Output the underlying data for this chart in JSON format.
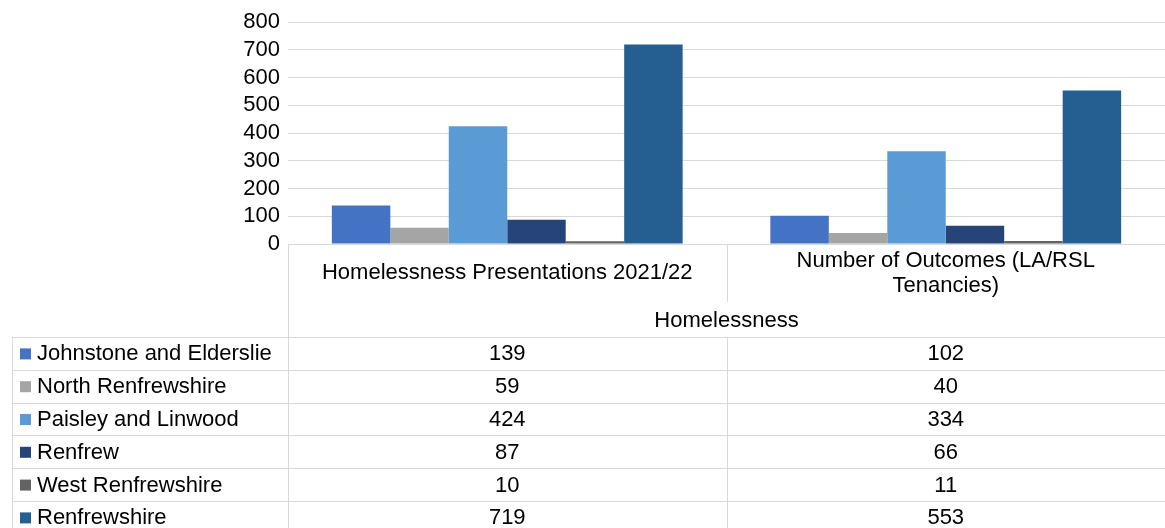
{
  "chart_data": {
    "type": "bar",
    "categories": [
      "Homelessness Presentations 2021/22",
      "Number of Outcomes (LA/RSL Tenancies)"
    ],
    "xlabel": "Homelessness",
    "series": [
      {
        "name": "Johnstone and Elderslie",
        "color": "#4472c4",
        "values": [
          139,
          102
        ]
      },
      {
        "name": "North Renfrewshire",
        "color": "#a5a5a5",
        "values": [
          59,
          40
        ]
      },
      {
        "name": "Paisley and Linwood",
        "color": "#5b9bd5",
        "values": [
          424,
          334
        ]
      },
      {
        "name": "Renfrew",
        "color": "#264478",
        "values": [
          87,
          66
        ]
      },
      {
        "name": "West Renfrewshire",
        "color": "#636363",
        "values": [
          10,
          11
        ]
      },
      {
        "name": "Renfrewshire",
        "color": "#255e91",
        "values": [
          719,
          553
        ]
      }
    ],
    "ylim": [
      0,
      800
    ],
    "yticks": [
      0,
      100,
      200,
      300,
      400,
      500,
      600,
      700,
      800
    ],
    "grid": "y",
    "legend": "bottom",
    "data_labels": true
  }
}
